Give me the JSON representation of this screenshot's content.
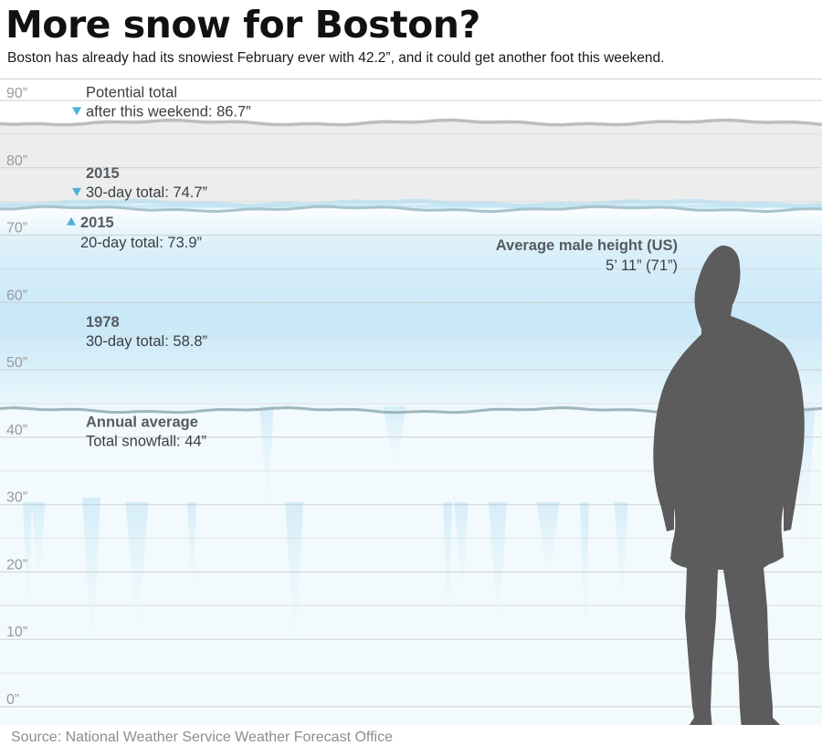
{
  "title": "More snow for Boston?",
  "subtitle": "Boston has already had its snowiest February ever with 42.2”, and it could get another foot this weekend.",
  "source": "Source: National Weather Service Weather Forecast Office",
  "colors": {
    "ice_light": "#e3f3fb",
    "ice_mid": "#bfe4f6",
    "ice_edge": "#c4e4f2",
    "gray_band": "#ededed",
    "marker": "#4db3d6",
    "silhouette": "#5a5a5a"
  },
  "chart_data": {
    "type": "area",
    "title": "More snow for Boston?",
    "subtitle": "Boston has already had its snowiest February ever with 42.2”, and it could get another foot this weekend.",
    "unit": "inches of snowfall",
    "ylim": [
      0,
      90
    ],
    "y_ticks": [
      0,
      10,
      20,
      30,
      40,
      50,
      60,
      70,
      80,
      90
    ],
    "y_tick_labels": [
      "0”",
      "10”",
      "20”",
      "30”",
      "40”",
      "50”",
      "60”",
      "70”",
      "80”",
      "90”"
    ],
    "grid": true,
    "levels": [
      {
        "value": 86.7,
        "line1": "Potential total",
        "line2": "after this weekend: 86.7”",
        "bold": false,
        "marker": "down"
      },
      {
        "value": 74.7,
        "line1": "2015",
        "line2": "30-day total: 74.7”",
        "bold": true,
        "marker": "down"
      },
      {
        "value": 73.9,
        "line1": "2015",
        "line2": "20-day total: 73.9”",
        "bold": true,
        "marker": "up"
      },
      {
        "value": 58.8,
        "line1": "1978",
        "line2": "30-day total: 58.8”",
        "bold": true,
        "marker": ""
      },
      {
        "value": 44,
        "line1": "Annual average",
        "line2": "Total snowfall: 44”",
        "bold": true,
        "marker": ""
      }
    ],
    "reference": {
      "value": 71,
      "line1": "Average male height (US)",
      "line2": "5’ 11” (71”)",
      "icon": "man-silhouette-icon"
    }
  }
}
